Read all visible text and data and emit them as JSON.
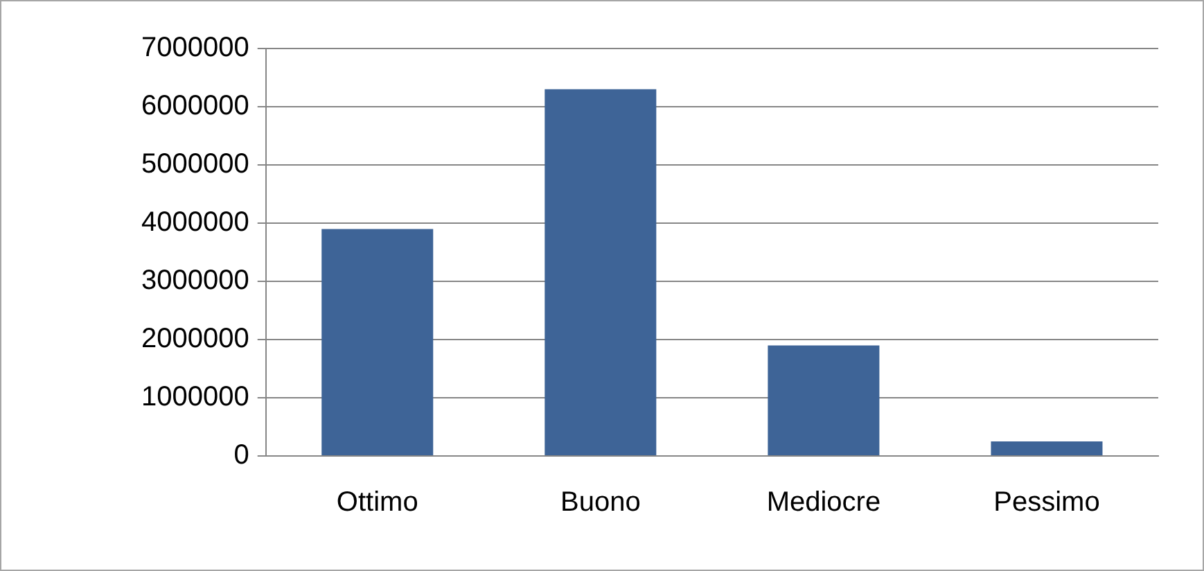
{
  "chart_data": {
    "type": "bar",
    "categories": [
      "Ottimo",
      "Buono",
      "Mediocre",
      "Pessimo"
    ],
    "values": [
      3900000,
      6300000,
      1900000,
      250000
    ],
    "color": "#3e6497",
    "ylim": [
      0,
      7000000
    ],
    "yticks": [
      0,
      1000000,
      2000000,
      3000000,
      4000000,
      5000000,
      6000000,
      7000000
    ],
    "grid": "y",
    "legend": false
  }
}
